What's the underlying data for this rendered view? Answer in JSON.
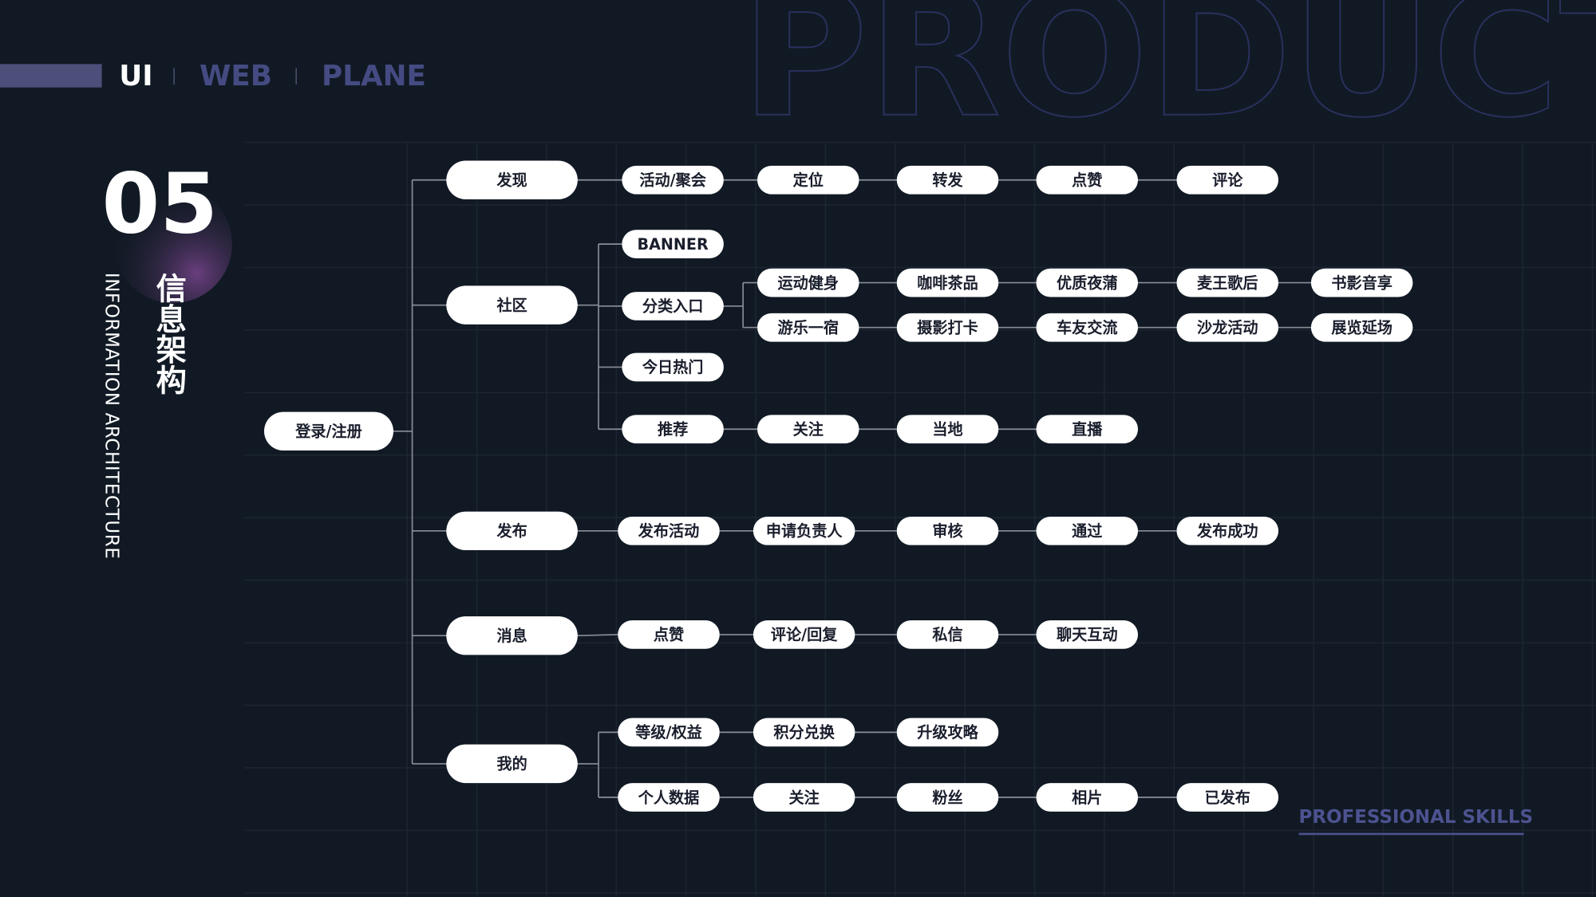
{
  "header": {
    "tabs": [
      "UI",
      "WEB",
      "PLANE"
    ],
    "backdrop": "PRODUCT"
  },
  "section": {
    "number": "05",
    "title": "信息架构",
    "subtitle": "INFORMATION ARCHITECTURE"
  },
  "footer": "PROFESSIONAL SKILLS",
  "tree": {
    "root": "登录/注册",
    "branches": [
      {
        "label": "发现",
        "items": [
          {
            "label": "活动/聚会",
            "chain": [
              "定位",
              "转发",
              "点赞",
              "评论"
            ]
          }
        ]
      },
      {
        "label": "社区",
        "items": [
          {
            "label": "BANNER"
          },
          {
            "label": "分类入口",
            "rows": [
              [
                "运动健身",
                "咖啡茶品",
                "优质夜蒲",
                "麦王歌后",
                "书影音享"
              ],
              [
                "游乐一宿",
                "摄影打卡",
                "车友交流",
                "沙龙活动",
                "展览延场"
              ]
            ]
          },
          {
            "label": "今日热门"
          },
          {
            "label": "推荐",
            "chain": [
              "关注",
              "当地",
              "直播"
            ]
          }
        ]
      },
      {
        "label": "发布",
        "items": [
          {
            "label": "发布活动",
            "chain": [
              "申请负责人",
              "审核",
              "通过",
              "发布成功"
            ]
          }
        ]
      },
      {
        "label": "消息",
        "items": [
          {
            "label": "点赞",
            "chain": [
              "评论/回复",
              "私信",
              "聊天互动"
            ]
          }
        ]
      },
      {
        "label": "我的",
        "items": [
          {
            "label": "等级/权益",
            "chain": [
              "积分兑换",
              "升级攻略"
            ]
          },
          {
            "label": "个人数据",
            "chain": [
              "关注",
              "粉丝",
              "相片",
              "已发布"
            ]
          }
        ]
      }
    ]
  }
}
